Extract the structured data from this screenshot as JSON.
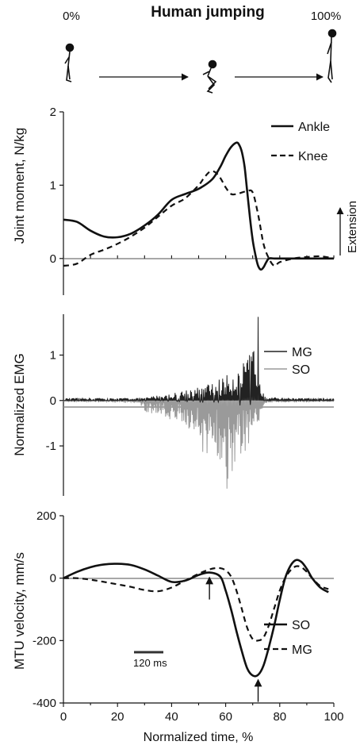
{
  "figure": {
    "title": "Human jumping",
    "stage_start_label": "0%",
    "stage_end_label": "100%",
    "extension_label": "Extension",
    "scale_bar_label": "120 ms"
  },
  "chart_data": [
    {
      "type": "line",
      "panel": "joint-moment",
      "ylabel": "Joint moment, N/kg",
      "xlabel": "",
      "xlim": [
        0,
        100
      ],
      "ylim": [
        -0.5,
        2
      ],
      "yticks": [
        "0",
        "1",
        "2"
      ],
      "legend": "top-right",
      "series": [
        {
          "name": "Ankle",
          "style": "solid",
          "x": [
            0,
            5,
            10,
            15,
            20,
            25,
            30,
            35,
            40,
            45,
            50,
            55,
            58,
            60,
            62,
            64,
            65,
            66,
            67,
            68,
            69,
            70,
            71,
            72,
            73,
            74,
            75,
            76,
            78,
            80,
            85,
            90,
            95,
            100
          ],
          "y": [
            0.53,
            0.5,
            0.38,
            0.3,
            0.29,
            0.34,
            0.45,
            0.6,
            0.8,
            0.88,
            0.95,
            1.08,
            1.25,
            1.4,
            1.52,
            1.58,
            1.55,
            1.45,
            1.25,
            0.9,
            0.55,
            0.25,
            0.05,
            -0.1,
            -0.15,
            -0.12,
            -0.05,
            0.0,
            0.0,
            0.0,
            0.0,
            0.0,
            0.0,
            0.0
          ]
        },
        {
          "name": "Knee",
          "style": "dashed",
          "x": [
            0,
            5,
            10,
            15,
            20,
            25,
            30,
            35,
            40,
            45,
            50,
            52,
            54,
            56,
            58,
            60,
            62,
            64,
            66,
            68,
            70,
            72,
            74,
            76,
            78,
            80,
            85,
            90,
            95,
            100
          ],
          "y": [
            -0.1,
            -0.07,
            0.05,
            0.12,
            0.2,
            0.3,
            0.42,
            0.57,
            0.72,
            0.82,
            1.0,
            1.1,
            1.18,
            1.18,
            1.1,
            0.97,
            0.88,
            0.88,
            0.9,
            0.92,
            0.9,
            0.6,
            0.2,
            0.0,
            -0.1,
            -0.05,
            0.0,
            0.02,
            0.03,
            0.0
          ]
        }
      ]
    },
    {
      "type": "line",
      "panel": "normalized-emg",
      "ylabel": "Normalized EMG",
      "xlabel": "",
      "xlim": [
        0,
        100
      ],
      "ylim": [
        -2.1,
        1.9
      ],
      "yticks": [
        "-1",
        "0",
        "1"
      ],
      "legend": "top-right",
      "series": [
        {
          "name": "MG",
          "color": "#222222",
          "x": [
            0,
            10,
            20,
            30,
            35,
            40,
            45,
            50,
            55,
            60,
            62,
            64,
            66,
            68,
            70,
            71,
            72,
            73,
            75,
            80,
            90,
            100
          ],
          "y": [
            0.05,
            0.06,
            0.05,
            0.06,
            0.12,
            0.15,
            0.25,
            0.3,
            0.4,
            0.55,
            0.6,
            0.7,
            0.8,
            0.9,
            1.2,
            1.3,
            1.9,
            0.5,
            0.08,
            0.06,
            0.05,
            0.04
          ]
        },
        {
          "name": "SO",
          "color": "#9a9a9a",
          "x": [
            0,
            10,
            20,
            28,
            30,
            35,
            40,
            45,
            50,
            52,
            55,
            58,
            60,
            62,
            64,
            66,
            68,
            70,
            72,
            75,
            80,
            100
          ],
          "y": [
            -0.02,
            -0.03,
            -0.03,
            -0.05,
            -0.3,
            -0.3,
            -0.45,
            -0.55,
            -0.9,
            -1.3,
            -1.0,
            -1.5,
            -2.1,
            -1.6,
            -1.4,
            -1.5,
            -1.1,
            -0.9,
            -0.5,
            -0.05,
            -0.03,
            -0.02
          ]
        }
      ]
    },
    {
      "type": "line",
      "panel": "mtu-velocity",
      "ylabel": "MTU velocity, mm/s",
      "xlabel": "Normalized time, %",
      "xlim": [
        0,
        100
      ],
      "ylim": [
        -400,
        200
      ],
      "yticks": [
        "-400",
        "-200",
        "0",
        "200"
      ],
      "xticks": [
        "0",
        "20",
        "40",
        "60",
        "80",
        "100"
      ],
      "legend": "bottom-right",
      "series": [
        {
          "name": "SO",
          "style": "solid",
          "x": [
            0,
            5,
            10,
            15,
            20,
            25,
            30,
            35,
            40,
            45,
            50,
            54,
            58,
            60,
            62,
            64,
            66,
            68,
            70,
            72,
            74,
            76,
            78,
            80,
            82,
            84,
            86,
            88,
            90,
            92,
            95,
            98
          ],
          "y": [
            0,
            20,
            35,
            44,
            46,
            42,
            28,
            8,
            -12,
            -8,
            10,
            18,
            5,
            -40,
            -100,
            -170,
            -235,
            -290,
            -312,
            -310,
            -280,
            -220,
            -150,
            -70,
            0,
            40,
            58,
            52,
            30,
            0,
            -30,
            -45
          ],
          "markers_x": [
            54,
            72
          ]
        },
        {
          "name": "MG",
          "style": "dashed",
          "x": [
            0,
            5,
            10,
            15,
            20,
            25,
            30,
            35,
            40,
            45,
            50,
            54,
            56,
            58,
            60,
            62,
            64,
            66,
            68,
            70,
            72,
            74,
            76,
            78,
            80,
            82,
            84,
            86,
            88,
            90,
            92,
            95,
            98
          ],
          "y": [
            0,
            0,
            -5,
            -12,
            -20,
            -28,
            -38,
            -42,
            -30,
            -8,
            14,
            28,
            32,
            32,
            25,
            5,
            -40,
            -100,
            -160,
            -195,
            -200,
            -190,
            -150,
            -95,
            -40,
            0,
            25,
            38,
            35,
            20,
            0,
            -25,
            -35
          ]
        }
      ]
    }
  ]
}
